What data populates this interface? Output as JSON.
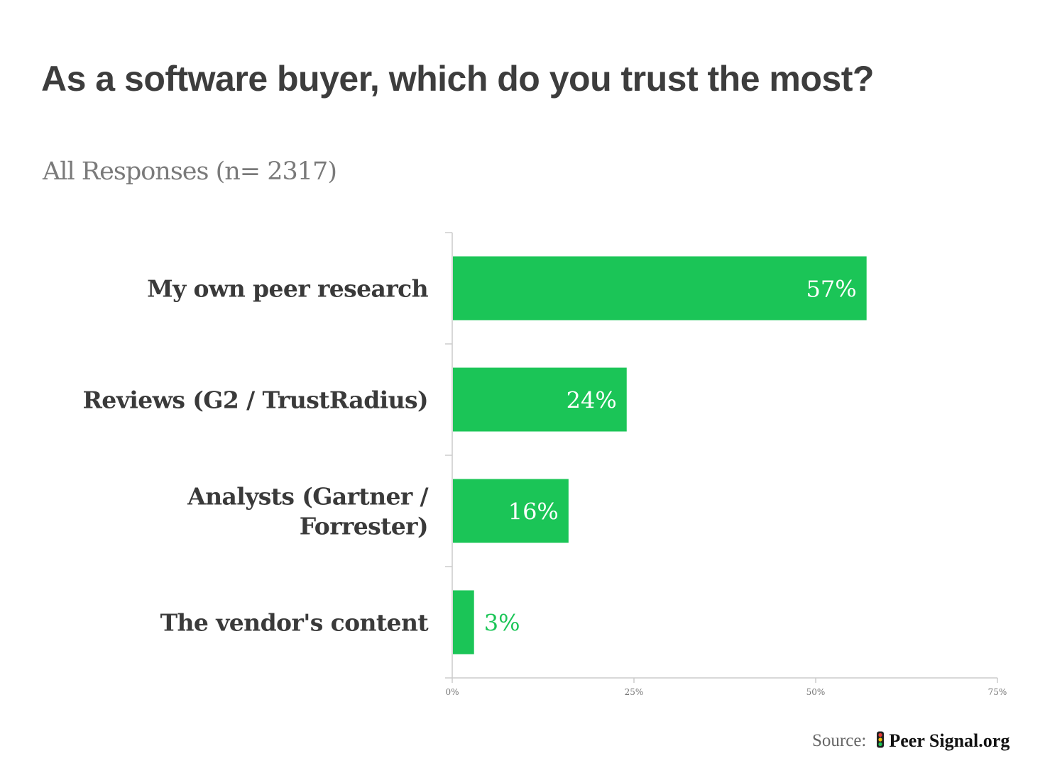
{
  "chart_data": {
    "type": "bar",
    "orientation": "horizontal",
    "title": "As a software buyer, which do you trust the most?",
    "subtitle": "All Responses (n= 2317)",
    "categories": [
      [
        "My own peer research"
      ],
      [
        "Reviews (G2 / TrustRadius)"
      ],
      [
        "Analysts (Gartner /",
        "Forrester)"
      ],
      [
        "The vendor's content"
      ]
    ],
    "values": [
      57,
      24,
      16,
      3
    ],
    "data_labels": [
      "57%",
      "24%",
      "16%",
      "3%"
    ],
    "xlim": [
      0,
      75
    ],
    "xticks": [
      0,
      25,
      50,
      75
    ],
    "xtick_labels": [
      "0%",
      "25%",
      "50%",
      "75%"
    ],
    "grid": false,
    "legend": "none",
    "colors": {
      "bar": "#1bc557",
      "label_inside": "#ffffff",
      "label_outside": "#1bc557",
      "category_text": "#3a3a3a",
      "axis": "#cccccc",
      "tick_text": "#777777"
    }
  },
  "footer": {
    "source_label": "Source:",
    "brand": "Peer Signal.org",
    "brand_icon": "traffic-light-icon"
  }
}
